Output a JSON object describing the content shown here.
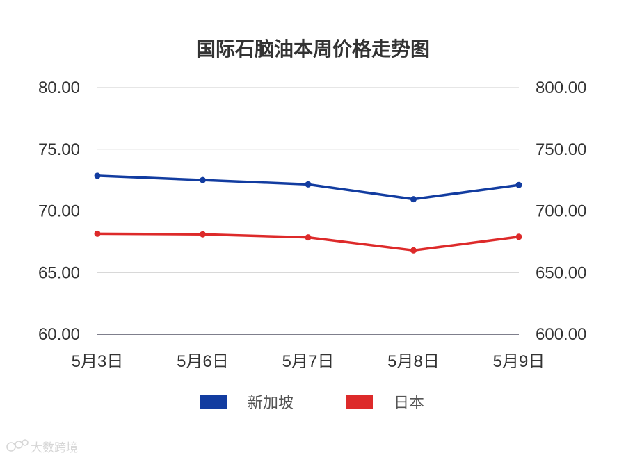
{
  "chart_data": {
    "type": "line",
    "title": "国际石脑油本周价格走势图",
    "categories": [
      "5月3日",
      "5月6日",
      "5月7日",
      "5月8日",
      "5月9日"
    ],
    "y_left": {
      "range": [
        60,
        80
      ],
      "ticks": [
        "80.00",
        "75.00",
        "70.00",
        "65.00",
        "60.00"
      ]
    },
    "y_right": {
      "range": [
        600,
        800
      ],
      "ticks": [
        "800.00",
        "750.00",
        "700.00",
        "650.00",
        "600.00"
      ]
    },
    "grid": true,
    "legend_position": "bottom",
    "series": [
      {
        "name": "新加坡",
        "color": "#123ca0",
        "axis": "left",
        "values": [
          72.85,
          72.5,
          72.15,
          70.95,
          72.1
        ]
      },
      {
        "name": "日本",
        "color": "#dd2a2a",
        "axis": "left",
        "values": [
          68.15,
          68.1,
          67.85,
          66.8,
          67.9
        ]
      }
    ]
  },
  "watermark": {
    "text": "大数跨境"
  }
}
